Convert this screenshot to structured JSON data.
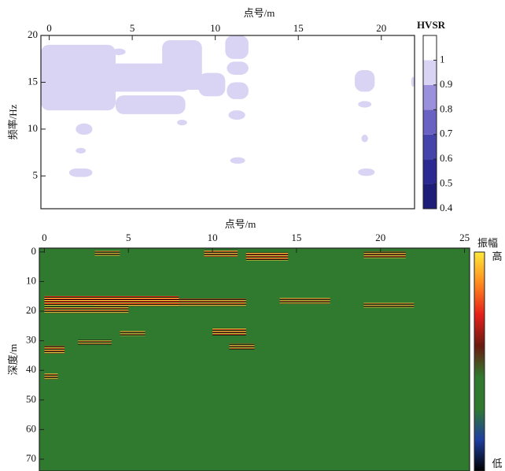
{
  "chart_data": [
    {
      "type": "contour",
      "x_label": "点号/m",
      "y_label": "频率/Hz",
      "xlim": [
        -0.5,
        22
      ],
      "xticks": [
        0,
        5,
        10,
        15,
        20
      ],
      "ylim": [
        1.5,
        20
      ],
      "yticks": [
        5,
        10,
        15,
        20
      ],
      "regions": [
        {
          "x": [
            -0.5,
            4
          ],
          "y": [
            12,
            19
          ],
          "value": 0.95
        },
        {
          "x": [
            1,
            8.5
          ],
          "y": [
            14,
            17
          ],
          "value": 0.95
        },
        {
          "x": [
            6.8,
            9.2
          ],
          "y": [
            14.5,
            19.5
          ],
          "value": 0.95
        },
        {
          "x": [
            4,
            10
          ],
          "y": [
            14.2,
            15.6
          ],
          "value": 0.95
        },
        {
          "x": [
            4,
            8.2
          ],
          "y": [
            11.6,
            13.6
          ],
          "value": 0.95
        },
        {
          "x": [
            9,
            10.6
          ],
          "y": [
            13.5,
            16
          ],
          "value": 0.95
        },
        {
          "x": [
            10.6,
            12
          ],
          "y": [
            17.5,
            20
          ],
          "value": 0.95
        },
        {
          "x": [
            10.7,
            12
          ],
          "y": [
            15.8,
            17.2
          ],
          "value": 0.95
        },
        {
          "x": [
            10.7,
            12
          ],
          "y": [
            13.2,
            15
          ],
          "value": 0.95
        },
        {
          "x": [
            10.8,
            11.8
          ],
          "y": [
            11,
            12
          ],
          "value": 0.95
        },
        {
          "x": [
            10.9,
            11.8
          ],
          "y": [
            6.3,
            7
          ],
          "value": 0.95
        },
        {
          "x": [
            3.8,
            4.6
          ],
          "y": [
            17.9,
            18.6
          ],
          "value": 0.95
        },
        {
          "x": [
            1.6,
            2.6
          ],
          "y": [
            9.4,
            10.6
          ],
          "value": 0.95
        },
        {
          "x": [
            1.6,
            2.2
          ],
          "y": [
            7.4,
            8
          ],
          "value": 0.95
        },
        {
          "x": [
            1.2,
            2.6
          ],
          "y": [
            4.9,
            5.8
          ],
          "value": 0.95
        },
        {
          "x": [
            7.7,
            8.3
          ],
          "y": [
            10.4,
            11
          ],
          "value": 0.95
        },
        {
          "x": [
            18.4,
            19.6
          ],
          "y": [
            14,
            16.3
          ],
          "value": 0.95
        },
        {
          "x": [
            18.6,
            19.4
          ],
          "y": [
            12.3,
            13
          ],
          "value": 0.95
        },
        {
          "x": [
            18.8,
            19.2
          ],
          "y": [
            8.6,
            9.4
          ],
          "value": 0.95
        },
        {
          "x": [
            18.6,
            19.6
          ],
          "y": [
            5,
            5.8
          ],
          "value": 0.95
        },
        {
          "x": [
            21.8,
            22
          ],
          "y": [
            14.5,
            15.6
          ],
          "value": 0.95
        }
      ],
      "colorbar": {
        "title": "HVSR",
        "lim": [
          0.4,
          1.1
        ],
        "ticks": [
          1,
          0.9,
          0.8,
          0.7,
          0.6,
          0.5,
          0.4
        ],
        "colors": [
          "#1e1e78",
          "#2a2a92",
          "#4444aa",
          "#6a62c2",
          "#9a90dc",
          "#d9d3f4",
          "#ffffff"
        ]
      }
    },
    {
      "type": "profile",
      "x_label": "点号/m",
      "y_label": "深度/m",
      "xlim": [
        -0.3,
        25.3
      ],
      "xticks": [
        0,
        5,
        10,
        15,
        20,
        25
      ],
      "ylim": [
        -1.3,
        74
      ],
      "yticks": [
        0,
        10,
        20,
        30,
        40,
        50,
        60,
        70
      ],
      "background": "#2f7a2f",
      "reflectors": [
        {
          "x": [
            0,
            8
          ],
          "depth": 16.5,
          "amplitude": 1
        },
        {
          "x": [
            3,
            12
          ],
          "depth": 17,
          "amplitude": 0.7
        },
        {
          "x": [
            14,
            17
          ],
          "depth": 16.5,
          "amplitude": 0.5
        },
        {
          "x": [
            0,
            5
          ],
          "depth": 19.5,
          "amplitude": 0.6
        },
        {
          "x": [
            12,
            14.5
          ],
          "depth": 1.5,
          "amplitude": 0.8
        },
        {
          "x": [
            9.5,
            11.5
          ],
          "depth": 0.5,
          "amplitude": 0.6
        },
        {
          "x": [
            19,
            21.5
          ],
          "depth": 1,
          "amplitude": 0.6
        },
        {
          "x": [
            3,
            4.5
          ],
          "depth": 0.5,
          "amplitude": 0.4
        },
        {
          "x": [
            10,
            12
          ],
          "depth": 27,
          "amplitude": 0.7
        },
        {
          "x": [
            11,
            12.5
          ],
          "depth": 32,
          "amplitude": 0.5
        },
        {
          "x": [
            0,
            1.2
          ],
          "depth": 33,
          "amplitude": 0.7
        },
        {
          "x": [
            2,
            4
          ],
          "depth": 30.5,
          "amplitude": 0.4
        },
        {
          "x": [
            4.5,
            6
          ],
          "depth": 27.5,
          "amplitude": 0.4
        },
        {
          "x": [
            19,
            22
          ],
          "depth": 18,
          "amplitude": 0.4
        },
        {
          "x": [
            0,
            0.8
          ],
          "depth": 42,
          "amplitude": 0.5
        }
      ],
      "colorbar": {
        "title": "振幅",
        "high": "高",
        "low": "低",
        "colors": [
          "#ffe93a",
          "#ff8a1e",
          "#e5201a",
          "#6a1a10",
          "#2f7a2f",
          "#2f7a2f",
          "#1f3fa0",
          "#000000"
        ]
      }
    }
  ]
}
